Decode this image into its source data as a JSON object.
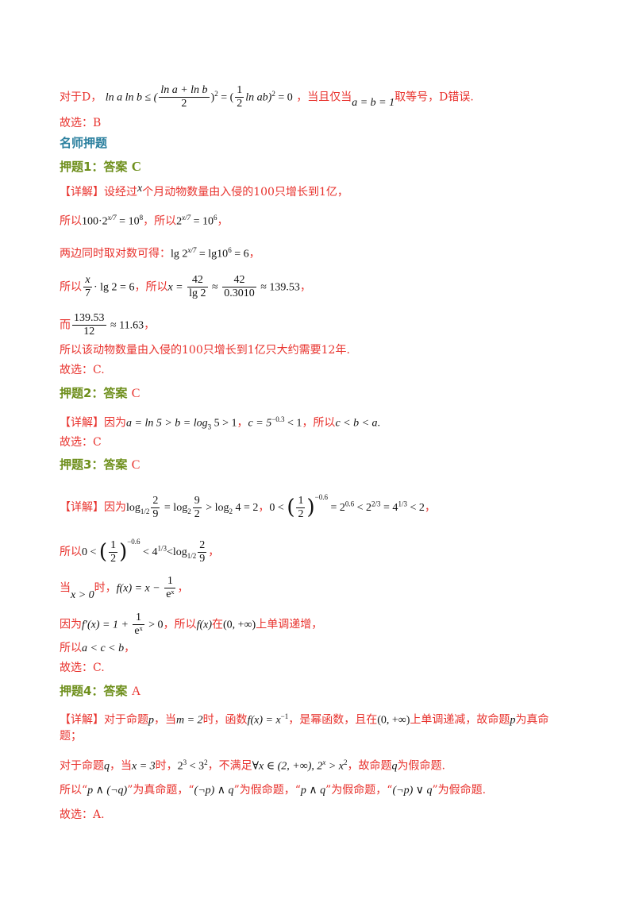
{
  "lines": {
    "d_prefix": "对于D，",
    "d_math_a": "ln a ln b ≤ (",
    "d_frac_num": "ln a + ln b",
    "d_frac_den": "2",
    "d_math_b": ")",
    "d_math_c": " = (",
    "d_frac2_num": "1",
    "d_frac2_den": "2",
    "d_math_d": "ln ab)",
    "d_math_e": " = 0",
    "d_mid": "，当且仅当",
    "d_cond": "a = b = 1",
    "d_suffix": "取等号，D错误.",
    "pick_b": "故选：B",
    "section_title": "名师押题",
    "p1_title": "押题1：答案",
    "p1_answer": "C",
    "p1_l1_tag": "【详解】",
    "p1_l1_a": "设经过",
    "p1_l1_x": "x",
    "p1_l1_b": "个月动物数量由入侵的100只增长到1亿，",
    "p1_l2_a": "所以",
    "p1_l2_m1": "100·2",
    "p1_l2_e1": "x/7",
    "p1_l2_m2": " = 10",
    "p1_l2_e2": "8",
    "p1_l2_b": "，所以",
    "p1_l2_m3": "2",
    "p1_l2_m4": " = 10",
    "p1_l2_e3": "6",
    "p1_l2_c": "，",
    "p1_l3_a": "两边同时取对数可得：",
    "p1_l3_m1": "lg 2",
    "p1_l3_m2": " = lg10",
    "p1_l3_m3": " = 6",
    "p1_l3_b": "，",
    "p1_l4_a": "所以",
    "p1_l4_fn": "x",
    "p1_l4_fd": "7",
    "p1_l4_m1": "· lg 2 = 6",
    "p1_l4_b": "，所以",
    "p1_l4_m2": "x = ",
    "p1_l4_f2n": "42",
    "p1_l4_f2d": "lg 2",
    "p1_l4_m3": " ≈ ",
    "p1_l4_f3n": "42",
    "p1_l4_f3d": "0.3010",
    "p1_l4_m4": " ≈ 139.53",
    "p1_l4_c": "，",
    "p1_l5_a": "而",
    "p1_l5_fn": "139.53",
    "p1_l5_fd": "12",
    "p1_l5_m": " ≈ 11.63",
    "p1_l5_b": "，",
    "p1_l6": "所以该动物数量由入侵的100只增长到1亿只大约需要12年.",
    "p1_pick": "故选：C.",
    "p2_title": "押题2：答案",
    "p2_answer": "C",
    "p2_tag": "【详解】",
    "p2_a": "因为",
    "p2_m1": "a = ln 5 > b = log",
    "p2_m1s": "3",
    "p2_m2": " 5 > 1",
    "p2_b": "，",
    "p2_m3": "c = 5",
    "p2_m3e": "−0.3",
    "p2_m4": " < 1",
    "p2_c": "，所以",
    "p2_m5": "c < b < a",
    "p2_d": ".",
    "p2_pick": "故选：C",
    "p3_title": "押题3：答案",
    "p3_answer": "C",
    "p3_tag": "【详解】",
    "p3_a": "因为",
    "p3_m1": "log",
    "p3_m1s": "1/2",
    "p3_f1n": "2",
    "p3_f1d": "9",
    "p3_m2": " = log",
    "p3_m2s": "2",
    "p3_f2n": "9",
    "p3_f2d": "2",
    "p3_m3": " > log",
    "p3_m3s": "2",
    "p3_m4": " 4 = 2",
    "p3_b": "，",
    "p3_m5": "0 < ",
    "p3_f3n": "1",
    "p3_f3d": "2",
    "p3_m5e": "−0.6",
    "p3_m6": " = 2",
    "p3_m6e": "0.6",
    "p3_m7": " < 2",
    "p3_m7e": "2/3",
    "p3_m8": " = 4",
    "p3_m8e": "1/3",
    "p3_m9": " < 2",
    "p3_c": "，",
    "p3_l2_a": "所以",
    "p3_l2_m1": "0 < ",
    "p3_l2_m2": " < 4",
    "p3_l2_m3": "<log",
    "p3_l2_c": "，",
    "p3_l3_a": "当",
    "p3_l3_m1": "x > 0",
    "p3_l3_b": "时，",
    "p3_l3_m2": "f(x) = x − ",
    "p3_l3_fn": "1",
    "p3_l3_fd": "eˣ",
    "p3_l3_c": "，",
    "p3_l4_a": "因为",
    "p3_l4_m1": "f′(x) = 1 + ",
    "p3_l4_m2": " > 0",
    "p3_l4_b": "，所以",
    "p3_l4_m3": "f(x)",
    "p3_l4_c": "在",
    "p3_l4_m4": "(0, +∞)",
    "p3_l4_d": "上单调递增，",
    "p3_l5_a": "所以",
    "p3_l5_m": "a < c < b",
    "p3_l5_b": "，",
    "p3_pick": "故选：C.",
    "p4_title": "押题4：答案",
    "p4_answer": "A",
    "p4_tag": "【详解】",
    "p4_a": "对于命题",
    "p4_p": "p",
    "p4_b": "，当",
    "p4_m1": "m = 2",
    "p4_c": "时，函数",
    "p4_m2": "f(x) = x",
    "p4_m2e": "−1",
    "p4_d": "，是幂函数，且在",
    "p4_m3": "(0, +∞)",
    "p4_e": "上单调递减，故命题",
    "p4_f": "为真命",
    "p4_l2": "题；",
    "p4_l3_a": "对于命题",
    "p4_l3_q": "q",
    "p4_l3_b": "，当",
    "p4_l3_m1": "x = 3",
    "p4_l3_c": "时，",
    "p4_l3_m2": "2",
    "p4_l3_m3": " < 3",
    "p4_l3_d": "，不满足",
    "p4_l3_m4": "∀x ∈ (2, +∞), 2",
    "p4_l3_m5": " > x",
    "p4_l3_e": "，故命题",
    "p4_l3_f": "为假命题.",
    "p4_l4_a": "所以“",
    "p4_l4_m1": "p ∧ (¬q)",
    "p4_l4_b": "”为真命题，“",
    "p4_l4_m2": "(¬p) ∧ q",
    "p4_l4_c": "”为假命题，“",
    "p4_l4_m3": "p ∧ q",
    "p4_l4_d": "”为假命题，“",
    "p4_l4_m4": "(¬p) ∨ q",
    "p4_l4_e": "”为假命题.",
    "p4_pick": "故选：A."
  }
}
